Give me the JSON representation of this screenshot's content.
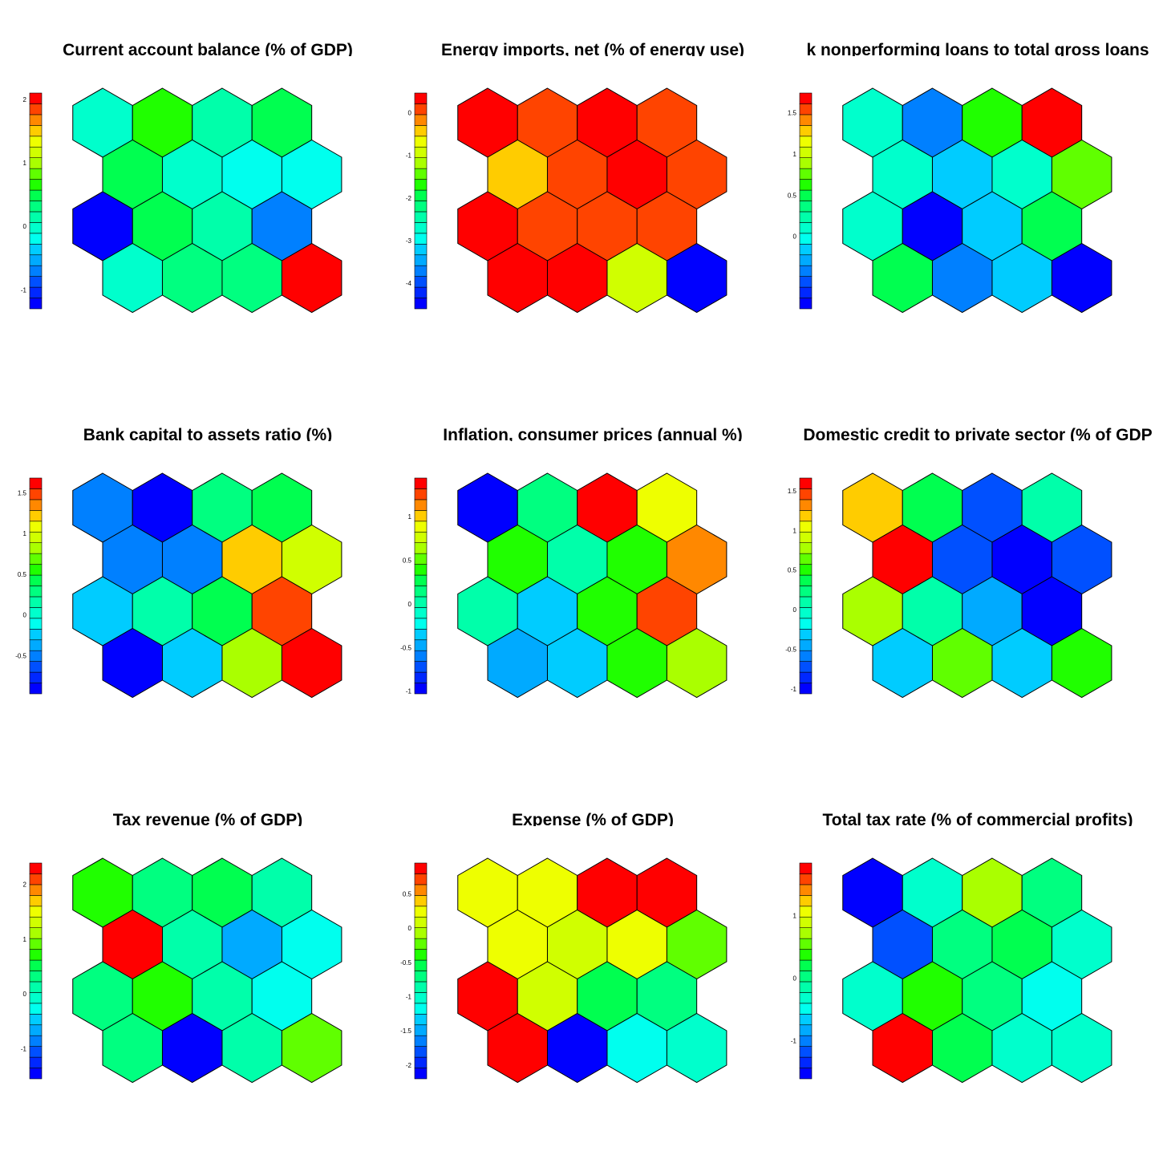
{
  "chart_data": [
    {
      "type": "heatmap",
      "title": "Current account balance (% of GDP)",
      "scale_ticks": [
        "2",
        "1",
        "0",
        "-1"
      ],
      "values": [
        [
          0.04,
          0.64,
          0.2,
          0.52
        ],
        [
          0.44,
          0.05,
          -0.19,
          -0.18
        ],
        [
          -1.3,
          0.42,
          0.1,
          -0.79
        ],
        [
          0.06,
          0.28,
          0.3,
          2.1
        ]
      ]
    },
    {
      "type": "heatmap",
      "title": "Energy imports, net (% of energy use)",
      "scale_ticks": [
        "0",
        "-1",
        "-2",
        "-3",
        "-4"
      ],
      "values": [
        [
          0.46,
          0.01,
          0.46,
          0.01
        ],
        [
          -0.45,
          0.01,
          0.46,
          0.01
        ],
        [
          0.46,
          0.01,
          0.01,
          0.01
        ],
        [
          0.46,
          0.46,
          -0.9,
          -4.6
        ]
      ]
    },
    {
      "type": "heatmap",
      "title": "k nonperforming loans to total gross loans",
      "scale_ticks": [
        "1.5",
        "1",
        "0.5",
        "0"
      ],
      "values": [
        [
          0.08,
          -0.47,
          0.61,
          1.74
        ],
        [
          0.08,
          -0.17,
          0.08,
          0.74
        ],
        [
          0.08,
          -0.88,
          -0.17,
          0.44
        ],
        [
          0.44,
          -0.47,
          -0.17,
          -0.88
        ]
      ]
    },
    {
      "type": "heatmap",
      "title": "Bank capital to assets ratio (%)",
      "scale_ticks": [
        "1.5",
        "1",
        "0.5",
        "0",
        "-0.5",
        "-1"
      ],
      "values": [
        [
          -0.47,
          -0.97,
          0.31,
          0.45
        ],
        [
          -0.47,
          -0.47,
          1.2,
          0.98
        ],
        [
          -0.24,
          0.15,
          0.45,
          1.45
        ],
        [
          -0.97,
          -0.24,
          0.83,
          1.68
        ]
      ]
    },
    {
      "type": "heatmap",
      "title": "Inflation, consumer prices (annual %)",
      "scale_ticks": [
        "1",
        "0.5",
        "0",
        "-0.5",
        "-1"
      ],
      "values": [
        [
          -1.03,
          0.2,
          1.44,
          0.92
        ],
        [
          0.37,
          0.05,
          0.37,
          1.07
        ],
        [
          0.05,
          -0.36,
          0.37,
          1.28
        ],
        [
          -0.52,
          -0.36,
          0.44,
          0.64
        ]
      ]
    },
    {
      "type": "heatmap",
      "title": "Domestic credit to private sector (% of GDP",
      "scale_ticks": [
        "1.5",
        "1",
        "0.5",
        "0",
        "-0.5",
        "-1"
      ],
      "values": [
        [
          1.23,
          0.32,
          -0.78,
          0.16
        ],
        [
          1.66,
          -0.78,
          -1.06,
          -0.78
        ],
        [
          0.81,
          0.16,
          -0.4,
          -1.06
        ],
        [
          -0.26,
          0.62,
          -0.26,
          0.46
        ]
      ]
    },
    {
      "type": "heatmap",
      "title": "Tax revenue (% of GDP)",
      "scale_ticks": [
        "2",
        "1",
        "0",
        "-1"
      ],
      "values": [
        [
          0.65,
          0.32,
          0.43,
          0.1
        ],
        [
          2.39,
          0.1,
          -0.66,
          -0.24
        ],
        [
          0.32,
          0.65,
          0.1,
          -0.24
        ],
        [
          0.32,
          -1.55,
          0.21,
          0.98
        ]
      ]
    },
    {
      "type": "heatmap",
      "title": "Expense (% of GDP)",
      "scale_ticks": [
        "0.5",
        "0",
        "-0.5",
        "-1",
        "-1.5",
        "-2"
      ],
      "values": [
        [
          0.31,
          0.31,
          0.95,
          0.95
        ],
        [
          0.31,
          0.09,
          0.31,
          -0.26
        ],
        [
          0.95,
          0.09,
          -0.59,
          -0.77
        ],
        [
          0.95,
          -2.2,
          -1.1,
          -1.0
        ]
      ]
    },
    {
      "type": "heatmap",
      "title": "Total tax rate (% of commercial profits)",
      "scale_ticks": [
        "1",
        "0",
        "-1"
      ],
      "values": [
        [
          -1.61,
          -0.3,
          0.71,
          -0.03
        ],
        [
          -1.14,
          -0.03,
          0.17,
          -0.3
        ],
        [
          -0.3,
          0.44,
          -0.03,
          -0.56
        ],
        [
          1.84,
          0.17,
          -0.3,
          -0.3
        ]
      ]
    }
  ]
}
